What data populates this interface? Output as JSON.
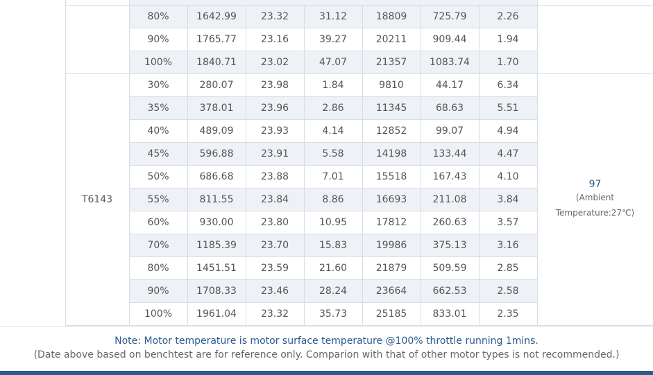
{
  "table": {
    "groups": [
      {
        "rows": [
          [
            "80%",
            "1642.99",
            "23.32",
            "31.12",
            "18809",
            "725.79",
            "2.26"
          ],
          [
            "90%",
            "1765.77",
            "23.16",
            "39.27",
            "20211",
            "909.44",
            "1.94"
          ],
          [
            "100%",
            "1840.71",
            "23.02",
            "47.07",
            "21357",
            "1083.74",
            "1.70"
          ]
        ]
      },
      {
        "name": "T6143",
        "temperature": "97",
        "temperature_note": "(Ambient Temperature:27℃)",
        "rows": [
          [
            "30%",
            "280.07",
            "23.98",
            "1.84",
            "9810",
            "44.17",
            "6.34"
          ],
          [
            "35%",
            "378.01",
            "23.96",
            "2.86",
            "11345",
            "68.63",
            "5.51"
          ],
          [
            "40%",
            "489.09",
            "23.93",
            "4.14",
            "12852",
            "99.07",
            "4.94"
          ],
          [
            "45%",
            "596.88",
            "23.91",
            "5.58",
            "14198",
            "133.44",
            "4.47"
          ],
          [
            "50%",
            "686.68",
            "23.88",
            "7.01",
            "15518",
            "167.43",
            "4.10"
          ],
          [
            "55%",
            "811.55",
            "23.84",
            "8.86",
            "16693",
            "211.08",
            "3.84"
          ],
          [
            "60%",
            "930.00",
            "23.80",
            "10.95",
            "17812",
            "260.63",
            "3.57"
          ],
          [
            "70%",
            "1185.39",
            "23.70",
            "15.83",
            "19986",
            "375.13",
            "3.16"
          ],
          [
            "80%",
            "1451.51",
            "23.59",
            "21.60",
            "21879",
            "509.59",
            "2.85"
          ],
          [
            "90%",
            "1708.33",
            "23.46",
            "28.24",
            "23664",
            "662.53",
            "2.58"
          ],
          [
            "100%",
            "1961.04",
            "23.32",
            "35.73",
            "25185",
            "833.01",
            "2.35"
          ]
        ]
      }
    ]
  },
  "note": {
    "line1": "Note: Motor temperature is motor surface temperature @100% throttle running 1mins.",
    "line2": "(Date above based on benchtest are for reference only. Comparion with that of other motor types is not recommended.)"
  }
}
